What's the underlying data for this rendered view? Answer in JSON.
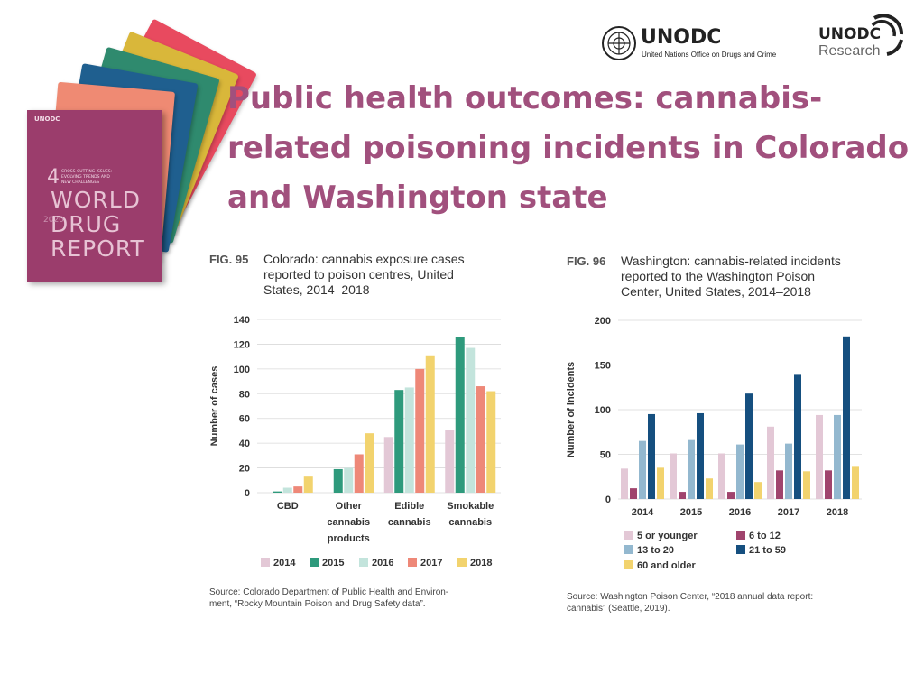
{
  "title_lines": [
    "Public health outcomes: cannabis-",
    "related poisoning incidents in Colorado",
    "and Washington state"
  ],
  "logos": {
    "unodc_name": "UNODC",
    "unodc_subtitle": "United Nations Office on Drugs and Crime",
    "research_name": "UNODC",
    "research_sub": "Research"
  },
  "cover": {
    "org": "UNODC",
    "number": "4",
    "subtitle_lines": [
      "CROSS-CUTTING ISSUES:",
      "EVOLVING TRENDS AND",
      "NEW CHALLENGES"
    ],
    "year": "2020",
    "report_lines": [
      "WORLD",
      "DRUG",
      "REPORT"
    ]
  },
  "colors": {
    "title": "#a1507d",
    "y2014": "#e3c8d6",
    "y2015": "#2e9a7c",
    "y2016": "#c3e4dc",
    "y2017": "#ee8878",
    "y2018": "#f2d36e",
    "age_a": "#e3c8d6",
    "age_b": "#a0446d",
    "age_c": "#93b8cf",
    "age_d": "#154f7f",
    "age_e": "#f2d36e"
  },
  "chart_data": [
    {
      "type": "bar",
      "fig_label": "FIG. 95",
      "title_lines": [
        "Colorado: cannabis exposure cases",
        "reported to poison centres, United",
        "States, 2014–2018"
      ],
      "ylabel": "Number of cases",
      "ylim": [
        0,
        140
      ],
      "yticks": [
        "0",
        "20",
        "40",
        "60",
        "80",
        "100",
        "120",
        "140"
      ],
      "categories": [
        [
          "CBD"
        ],
        [
          "Other",
          "cannabis",
          "products"
        ],
        [
          "Edible",
          "cannabis"
        ],
        [
          "Smokable",
          "cannabis"
        ]
      ],
      "series": [
        {
          "name": "2014",
          "values": [
            0,
            0,
            45,
            51
          ]
        },
        {
          "name": "2015",
          "values": [
            1,
            19,
            83,
            126
          ]
        },
        {
          "name": "2016",
          "values": [
            4,
            20,
            85,
            117
          ]
        },
        {
          "name": "2017",
          "values": [
            5,
            31,
            100,
            86
          ]
        },
        {
          "name": "2018",
          "values": [
            13,
            48,
            111,
            82
          ]
        }
      ],
      "source_lines": [
        "Source: Colorado Department of Public Health and Environ-",
        "ment, “Rocky Mountain Poison and Drug Safety data”."
      ]
    },
    {
      "type": "bar",
      "fig_label": "FIG. 96",
      "title_lines": [
        "Washington: cannabis-related incidents",
        "reported to the Washington Poison",
        "Center, United States, 2014–2018"
      ],
      "ylabel": "Number of incidents",
      "ylim": [
        0,
        200
      ],
      "yticks": [
        "0",
        "50",
        "100",
        "150",
        "200"
      ],
      "categories": [
        "2014",
        "2015",
        "2016",
        "2017",
        "2018"
      ],
      "series": [
        {
          "name": "5 or younger",
          "values": [
            34,
            51,
            51,
            81,
            94
          ]
        },
        {
          "name": "6 to 12",
          "values": [
            12,
            8,
            8,
            32,
            32
          ]
        },
        {
          "name": "13 to 20",
          "values": [
            65,
            66,
            61,
            62,
            94
          ]
        },
        {
          "name": "21 to 59",
          "values": [
            95,
            96,
            118,
            139,
            182
          ]
        },
        {
          "name": "60 and older",
          "values": [
            35,
            23,
            19,
            31,
            37
          ]
        }
      ],
      "source_lines": [
        "Source: Washington Poison Center, “2018 annual data report:",
        "cannabis” (Seattle, 2019)."
      ]
    }
  ]
}
